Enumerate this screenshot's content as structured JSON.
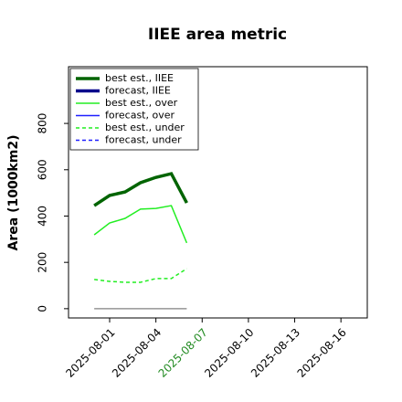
{
  "chart_data": {
    "type": "line",
    "title": "IIEE area metric",
    "ylabel": "Area (1000km2)",
    "x": [
      "2025-07-31",
      "2025-08-01",
      "2025-08-02",
      "2025-08-03",
      "2025-08-04",
      "2025-08-05",
      "2025-08-06"
    ],
    "series": [
      {
        "name": "best est., IIEE",
        "color": "#006400",
        "width": 3.5,
        "dash": false,
        "values": [
          445,
          489,
          504,
          544,
          567,
          583,
          457
        ]
      },
      {
        "name": "forecast, IIEE",
        "color": "#00008b",
        "width": 3.5,
        "dash": false,
        "values": [
          null,
          null,
          null,
          null,
          null,
          null,
          null
        ]
      },
      {
        "name": "best est., over",
        "color": "#22ee22",
        "width": 1.5,
        "dash": false,
        "values": [
          319,
          370,
          390,
          430,
          433,
          445,
          284
        ]
      },
      {
        "name": "forecast, over",
        "color": "#1f1fff",
        "width": 1.5,
        "dash": false,
        "values": [
          null,
          null,
          null,
          null,
          null,
          null,
          null
        ]
      },
      {
        "name": "best est., under",
        "color": "#22ee22",
        "width": 1.5,
        "dash": true,
        "values": [
          126,
          118,
          114,
          114,
          130,
          130,
          173
        ]
      },
      {
        "name": "forecast, under",
        "color": "#1f1fff",
        "width": 1.5,
        "dash": true,
        "values": [
          null,
          null,
          null,
          null,
          null,
          null,
          null
        ]
      },
      {
        "color": "#808080",
        "width": 1.2,
        "dash": false,
        "values": [
          0,
          0,
          0,
          0,
          0,
          0,
          0
        ]
      }
    ],
    "xlim": [
      "2025-07-29T08:00",
      "2025-08-17T17:00"
    ],
    "xticks": [
      "2025-08-01",
      "2025-08-04",
      "2025-08-07",
      "2025-08-10",
      "2025-08-13",
      "2025-08-16"
    ],
    "xtick_colors": [
      "#000000",
      "#000000",
      "#228b22",
      "#000000",
      "#000000",
      "#000000"
    ],
    "ylim": [
      -40,
      1045
    ],
    "yticks": [
      0,
      200,
      400,
      600,
      800
    ],
    "legend": "upper left"
  }
}
